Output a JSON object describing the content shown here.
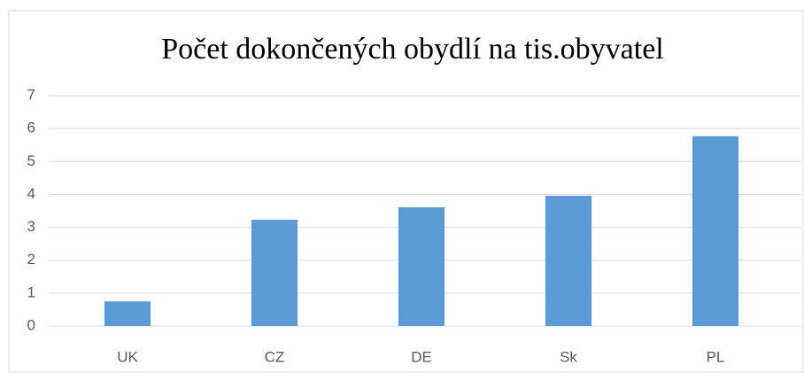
{
  "chart_data": {
    "type": "bar",
    "title": "Počet dokončených obydlí na tis.obyvatel",
    "categories": [
      "UK",
      "CZ",
      "DE",
      "Sk",
      "PL"
    ],
    "values": [
      0.75,
      3.23,
      3.61,
      3.96,
      5.77
    ],
    "color": "#5b9bd5",
    "ylim": [
      0,
      7
    ],
    "yticks": [
      0,
      1,
      2,
      3,
      4,
      5,
      6,
      7
    ],
    "grid": true
  }
}
